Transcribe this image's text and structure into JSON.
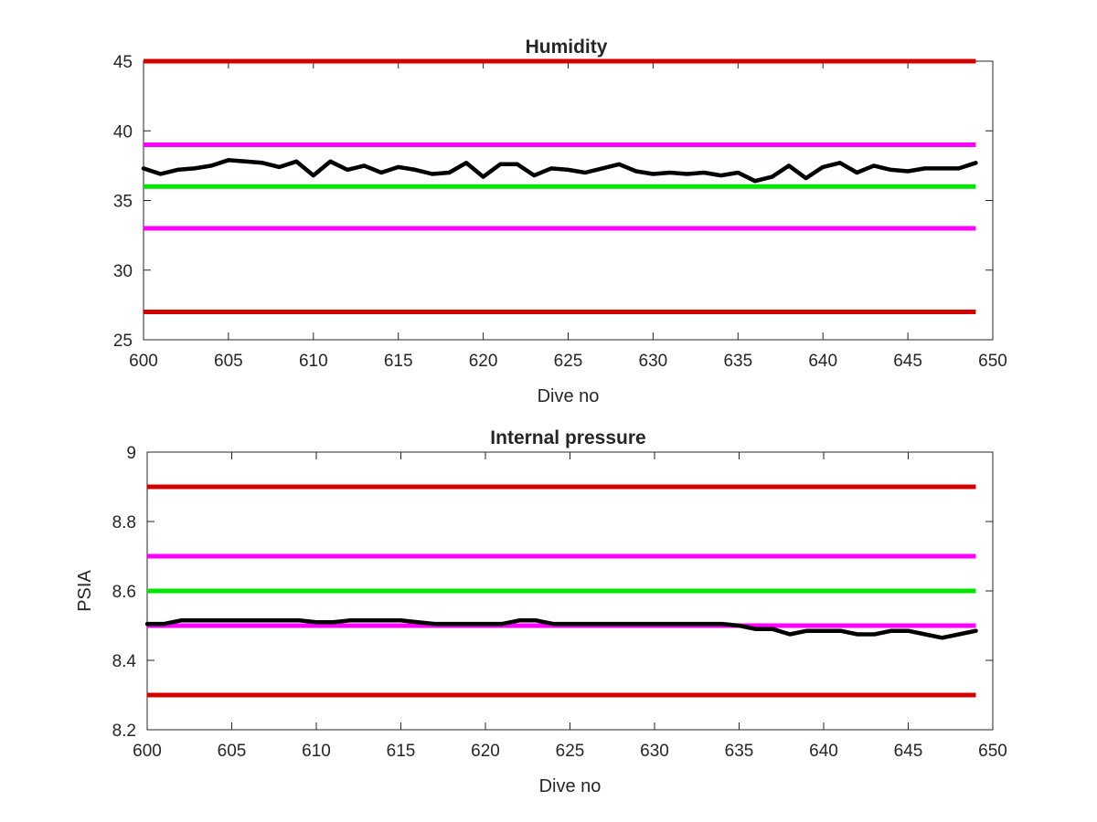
{
  "chart_data": [
    {
      "type": "line",
      "title": "Humidity",
      "xlabel": "Dive no",
      "ylabel": "",
      "xlim": [
        600,
        650
      ],
      "ylim": [
        25,
        45
      ],
      "xticks": [
        600,
        605,
        610,
        615,
        620,
        625,
        630,
        635,
        640,
        645,
        650
      ],
      "yticks": [
        25,
        30,
        35,
        40,
        45
      ],
      "grid": false,
      "reference_lines": [
        {
          "y": 45,
          "color": "#d40000"
        },
        {
          "y": 39,
          "color": "#ff00ff"
        },
        {
          "y": 36,
          "color": "#00e600"
        },
        {
          "y": 33,
          "color": "#ff00ff"
        },
        {
          "y": 27,
          "color": "#d40000"
        }
      ],
      "series": [
        {
          "color": "#000000",
          "x": [
            600,
            601,
            602,
            603,
            604,
            605,
            606,
            607,
            608,
            609,
            610,
            611,
            612,
            613,
            614,
            615,
            616,
            617,
            618,
            619,
            620,
            621,
            622,
            623,
            624,
            625,
            626,
            627,
            628,
            629,
            630,
            631,
            632,
            633,
            634,
            635,
            636,
            637,
            638,
            639,
            640,
            641,
            642,
            643,
            644,
            645,
            646,
            647,
            648,
            649
          ],
          "values": [
            37.3,
            36.9,
            37.2,
            37.3,
            37.5,
            37.9,
            37.8,
            37.7,
            37.4,
            37.8,
            36.8,
            37.8,
            37.2,
            37.5,
            37.0,
            37.4,
            37.2,
            36.9,
            37.0,
            37.7,
            36.7,
            37.6,
            37.6,
            36.8,
            37.3,
            37.2,
            37.0,
            37.3,
            37.6,
            37.1,
            36.9,
            37.0,
            36.9,
            37.0,
            36.8,
            37.0,
            36.4,
            36.7,
            37.5,
            36.6,
            37.4,
            37.7,
            37.0,
            37.5,
            37.2,
            37.1,
            37.3,
            37.3,
            37.3,
            37.7
          ]
        }
      ]
    },
    {
      "type": "line",
      "title": "Internal pressure",
      "xlabel": "Dive no",
      "ylabel": "PSIA",
      "xlim": [
        600,
        650
      ],
      "ylim": [
        8.2,
        9
      ],
      "xticks": [
        600,
        605,
        610,
        615,
        620,
        625,
        630,
        635,
        640,
        645,
        650
      ],
      "yticks": [
        8.2,
        8.4,
        8.6,
        8.8,
        9
      ],
      "grid": false,
      "reference_lines": [
        {
          "y": 8.9,
          "color": "#d40000"
        },
        {
          "y": 8.7,
          "color": "#ff00ff"
        },
        {
          "y": 8.6,
          "color": "#00e600"
        },
        {
          "y": 8.5,
          "color": "#ff00ff"
        },
        {
          "y": 8.3,
          "color": "#d40000"
        }
      ],
      "series": [
        {
          "color": "#000000",
          "x": [
            600,
            601,
            602,
            603,
            604,
            605,
            606,
            607,
            608,
            609,
            610,
            611,
            612,
            613,
            614,
            615,
            616,
            617,
            618,
            619,
            620,
            621,
            622,
            623,
            624,
            625,
            626,
            627,
            628,
            629,
            630,
            631,
            632,
            633,
            634,
            635,
            636,
            637,
            638,
            639,
            640,
            641,
            642,
            643,
            644,
            645,
            646,
            647,
            648,
            649
          ],
          "values": [
            8.505,
            8.505,
            8.515,
            8.515,
            8.515,
            8.515,
            8.515,
            8.515,
            8.515,
            8.515,
            8.51,
            8.51,
            8.515,
            8.515,
            8.515,
            8.515,
            8.51,
            8.505,
            8.505,
            8.505,
            8.505,
            8.505,
            8.515,
            8.515,
            8.505,
            8.505,
            8.505,
            8.505,
            8.505,
            8.505,
            8.505,
            8.505,
            8.505,
            8.505,
            8.505,
            8.5,
            8.49,
            8.49,
            8.475,
            8.485,
            8.485,
            8.485,
            8.475,
            8.475,
            8.485,
            8.485,
            8.475,
            8.465,
            8.475,
            8.485
          ]
        }
      ]
    }
  ]
}
